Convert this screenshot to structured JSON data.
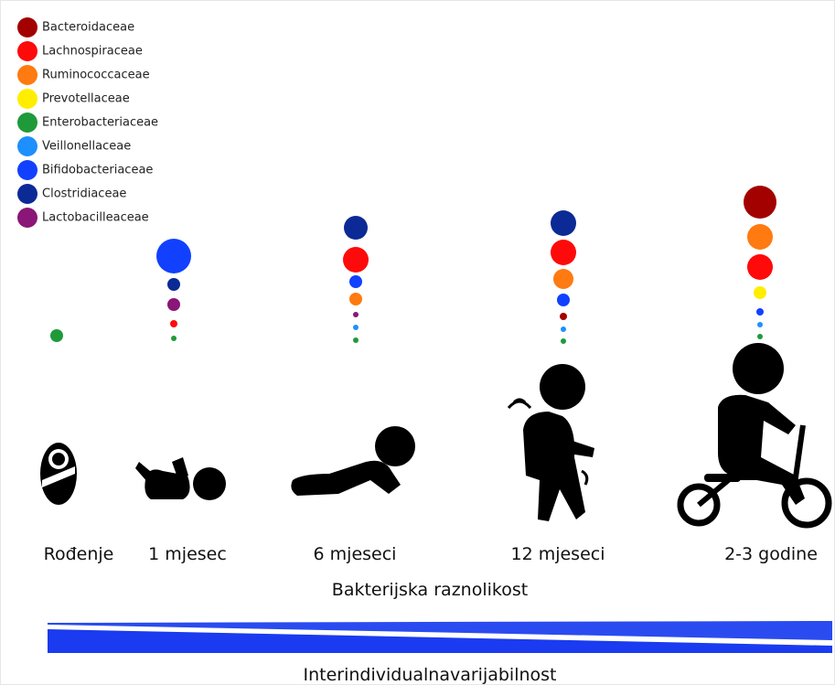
{
  "legend": [
    {
      "label": "Bacteroidaceae",
      "color": "#a30000"
    },
    {
      "label": "Lachnospiraceae",
      "color": "#ff0a0a"
    },
    {
      "label": "Ruminococcaceae",
      "color": "#ff7a10"
    },
    {
      "label": "Prevotellaceae",
      "color": "#ffee00"
    },
    {
      "label": "Enterobacteriaceae",
      "color": "#1f9a3a"
    },
    {
      "label": "Veillonellaceae",
      "color": "#1e8fff"
    },
    {
      "label": "Bifidobacteriaceae",
      "color": "#1240ff"
    },
    {
      "label": "Clostridiaceae",
      "color": "#0c2a95"
    },
    {
      "label": "Lactobacilleaceae",
      "color": "#8a1677"
    }
  ],
  "stages": [
    "Rođenje",
    "1 mjesec",
    "6 mjeseci",
    "12 mjeseci",
    "2-3 godine"
  ],
  "diversity_label": "Bakterijska raznolikost",
  "variability_label": "Interindividualnavarijabilnost"
}
